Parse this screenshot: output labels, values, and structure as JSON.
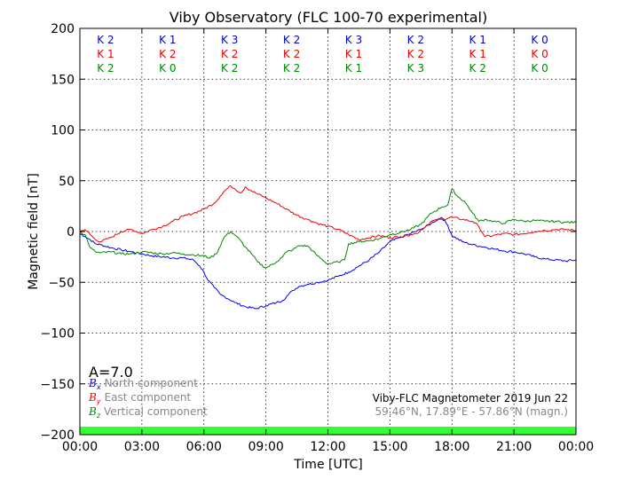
{
  "chart_data": {
    "type": "line",
    "title": "Viby Observatory (FLC 100-70 experimental)",
    "xlabel": "Time [UTC]",
    "ylabel": "Magnetic field [nT]",
    "xlim": [
      0,
      24
    ],
    "ylim": [
      -200,
      200
    ],
    "x_ticks": [
      "00:00",
      "03:00",
      "06:00",
      "09:00",
      "12:00",
      "15:00",
      "18:00",
      "21:00",
      "00:00"
    ],
    "y_ticks": [
      "200",
      "150",
      "100",
      "50",
      "0",
      "−50",
      "−100",
      "−150",
      "−200"
    ],
    "grid": true,
    "k_index": {
      "rows": [
        {
          "color": "#0000cc",
          "values": [
            "K 2",
            "K 1",
            "K 3",
            "K 2",
            "K 3",
            "K 2",
            "K 1",
            "K 0"
          ]
        },
        {
          "color": "#ee0000",
          "values": [
            "K 1",
            "K 2",
            "K 2",
            "K 2",
            "K 1",
            "K 2",
            "K 1",
            "K 0"
          ]
        },
        {
          "color": "#008800",
          "values": [
            "K 2",
            "K 0",
            "K 2",
            "K 2",
            "K 1",
            "K 3",
            "K 2",
            "K 0"
          ]
        }
      ]
    },
    "a_index": "A=7.0",
    "legend": {
      "placement": "lower-left",
      "items": [
        {
          "symbol": "B",
          "subscript": "x",
          "label": "North component",
          "color": "#0000cc"
        },
        {
          "symbol": "B",
          "subscript": "y",
          "label": "East component",
          "color": "#ee0000"
        },
        {
          "symbol": "B",
          "subscript": "z",
          "label": "Vertical component",
          "color": "#008800"
        }
      ]
    },
    "info_line1": "Viby-FLC Magnetometer 2019 Jun 22",
    "info_line2": "59.46°N, 17.89°E - 57.86°N (magn.)",
    "status_bar_color": "#33ff33",
    "series": [
      {
        "name": "North component",
        "color": "#0000ee",
        "x": [
          0,
          0.25,
          0.5,
          0.75,
          1.0,
          1.5,
          2.0,
          2.5,
          3.0,
          3.5,
          4.0,
          4.5,
          5.0,
          5.5,
          5.8,
          6.0,
          6.2,
          6.5,
          6.8,
          7.0,
          7.5,
          8.0,
          8.5,
          9.0,
          9.5,
          9.8,
          10.0,
          10.3,
          10.6,
          11.0,
          11.5,
          12.0,
          12.5,
          13.0,
          13.5,
          14.0,
          14.5,
          14.8,
          15.0,
          15.5,
          16.0,
          16.5,
          17.0,
          17.3,
          17.5,
          17.8,
          18.0,
          18.5,
          19.0,
          19.5,
          20.0,
          20.5,
          21.0,
          21.5,
          22.0,
          22.5,
          23.0,
          23.5,
          24.0
        ],
        "y": [
          -2,
          -5,
          -8,
          -12,
          -13,
          -16,
          -18,
          -20,
          -22,
          -24,
          -25,
          -26,
          -26,
          -28,
          -34,
          -40,
          -48,
          -55,
          -62,
          -64,
          -70,
          -74,
          -76,
          -73,
          -70,
          -68,
          -64,
          -58,
          -54,
          -52,
          -50,
          -48,
          -44,
          -40,
          -34,
          -28,
          -20,
          -14,
          -10,
          -6,
          -2,
          2,
          8,
          12,
          14,
          6,
          -4,
          -10,
          -13,
          -15,
          -17,
          -19,
          -20,
          -22,
          -25,
          -27,
          -28,
          -29,
          -28
        ]
      },
      {
        "name": "East component",
        "color": "#ee0000",
        "x": [
          0,
          0.25,
          0.5,
          0.75,
          1.0,
          1.5,
          2.0,
          2.5,
          3.0,
          3.5,
          4.0,
          4.5,
          5.0,
          5.5,
          6.0,
          6.5,
          6.8,
          7.0,
          7.3,
          7.5,
          7.8,
          8.0,
          8.3,
          8.5,
          9.0,
          9.5,
          10.0,
          10.5,
          11.0,
          11.5,
          12.0,
          12.5,
          13.0,
          13.5,
          14.0,
          14.5,
          15.0,
          15.5,
          16.0,
          16.3,
          16.5,
          16.8,
          17.0,
          17.5,
          18.0,
          18.5,
          19.0,
          19.3,
          19.6,
          20.0,
          20.5,
          21.0,
          21.5,
          22.0,
          22.5,
          23.0,
          23.5,
          24.0
        ],
        "y": [
          0,
          2,
          -3,
          -8,
          -10,
          -6,
          0,
          2,
          -2,
          2,
          5,
          10,
          15,
          18,
          22,
          28,
          35,
          40,
          45,
          42,
          38,
          44,
          40,
          38,
          33,
          28,
          22,
          16,
          12,
          8,
          5,
          2,
          -3,
          -8,
          -6,
          -4,
          -6,
          -5,
          -3,
          -2,
          2,
          6,
          10,
          12,
          14,
          12,
          10,
          5,
          -5,
          -4,
          -2,
          -3,
          -2,
          0,
          1,
          2,
          2,
          1
        ]
      },
      {
        "name": "Vertical component",
        "color": "#008800",
        "x": [
          0,
          0.25,
          0.5,
          0.75,
          1.0,
          1.5,
          2.0,
          2.5,
          3.0,
          3.5,
          4.0,
          4.5,
          5.0,
          5.5,
          6.0,
          6.3,
          6.6,
          7.0,
          7.3,
          7.6,
          8.0,
          8.3,
          8.6,
          9.0,
          9.5,
          9.8,
          10.0,
          10.3,
          10.6,
          11.0,
          11.5,
          12.0,
          12.5,
          12.8,
          13.0,
          13.5,
          14.0,
          14.5,
          15.0,
          15.5,
          16.0,
          16.5,
          17.0,
          17.5,
          17.8,
          18.0,
          18.3,
          18.6,
          19.0,
          19.3,
          19.6,
          20.0,
          20.5,
          21.0,
          21.5,
          22.0,
          22.5,
          23.0,
          23.5,
          24.0
        ],
        "y": [
          0,
          -3,
          -16,
          -20,
          -21,
          -20,
          -22,
          -22,
          -20,
          -21,
          -22,
          -21,
          -22,
          -23,
          -24,
          -26,
          -22,
          -5,
          0,
          -5,
          -15,
          -22,
          -30,
          -36,
          -30,
          -25,
          -20,
          -18,
          -14,
          -14,
          -24,
          -32,
          -30,
          -28,
          -12,
          -10,
          -9,
          -7,
          -3,
          -1,
          2,
          7,
          18,
          24,
          26,
          42,
          34,
          30,
          18,
          10,
          12,
          10,
          8,
          12,
          10,
          11,
          10,
          10,
          9,
          9
        ]
      }
    ]
  }
}
